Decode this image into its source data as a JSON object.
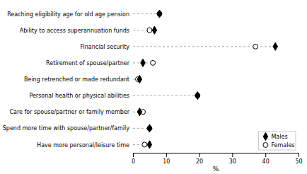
{
  "chart_data": {
    "type": "dot",
    "orientation": "horizontal",
    "categories": [
      "Reaching eligibility age for old age pension",
      "Ability to access superannuation funds",
      "Financial security",
      "Retirement of spouse/partner",
      "Being retrenched or made redundant",
      "Personal health or physical abilities",
      "Care for spouse/partner or family member",
      "Spend more time with spouse/partner/family",
      "Have more personal/leisure time"
    ],
    "series": [
      {
        "name": "Males",
        "color": "#000000",
        "marker": "diamond",
        "values": [
          8.0,
          6.5,
          43.0,
          3.0,
          2.0,
          19.5,
          2.0,
          5.0,
          5.0
        ]
      },
      {
        "name": "Females",
        "color": "#000000",
        "marker": "open-circle",
        "values": [
          8.0,
          5.0,
          37.0,
          6.0,
          1.5,
          19.5,
          3.0,
          5.0,
          3.5
        ]
      }
    ],
    "xlim": [
      0,
      50
    ],
    "xticks": [
      0,
      10,
      20,
      30,
      40,
      50
    ],
    "xlabel": "%",
    "grid": false,
    "legend": "lower right"
  }
}
